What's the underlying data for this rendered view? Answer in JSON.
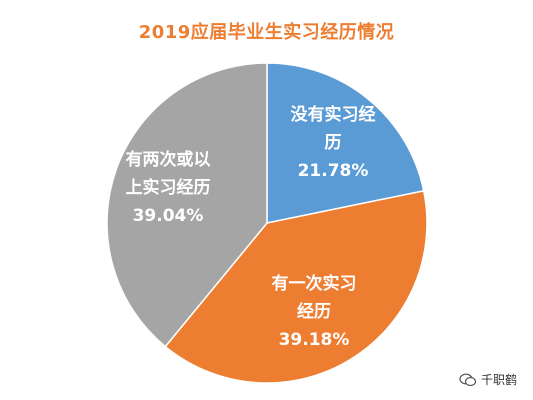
{
  "chart_data": {
    "type": "pie",
    "title": "2019应届毕业生实习经历情况",
    "slices": [
      {
        "label_lines": [
          "没有实习经",
          "历"
        ],
        "percent_text": "21.78%",
        "value": 21.78,
        "color": "#5B9BD5"
      },
      {
        "label_lines": [
          "有一次实习",
          "经历"
        ],
        "percent_text": "39.18%",
        "value": 39.18,
        "color": "#ED7D31"
      },
      {
        "label_lines": [
          "有两次或以",
          "上实习经历"
        ],
        "percent_text": "39.04%",
        "value": 39.04,
        "color": "#A5A5A5"
      }
    ],
    "start_angle_deg": 0,
    "direction": "clockwise"
  },
  "watermark": {
    "text": "千职鹤",
    "icon": "wechat-icon"
  }
}
